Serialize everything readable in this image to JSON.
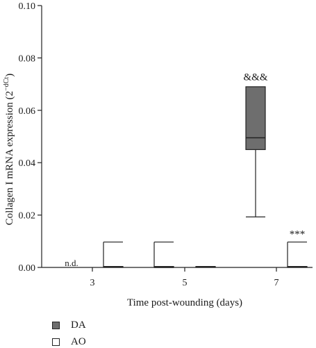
{
  "chart_data": {
    "type": "box",
    "ylabel": "Collagen I mRNA  expression (2",
    "ylabel_sup": "−dCt",
    "ylabel_close": ")",
    "xlabel": "Time post-wounding (days)",
    "ylim": [
      0,
      0.1
    ],
    "yticks": [
      0,
      0.02,
      0.04,
      0.06,
      0.08,
      0.1
    ],
    "ytick_labels": [
      "0.00",
      "0.02",
      "0.04",
      "0.06",
      "0.08",
      "0.10"
    ],
    "categories": [
      "3",
      "5",
      "7"
    ],
    "series": [
      {
        "name": "DA",
        "color": "#6e6e6e",
        "boxes": [
          {
            "category": "3",
            "min": 0,
            "q1": 0,
            "median": 0,
            "q3": 0,
            "max": 0,
            "not_detected": true
          },
          {
            "category": "5",
            "min": 0,
            "q1": 0,
            "median": 0,
            "q3": 0,
            "max": 0.0097
          },
          {
            "category": "7",
            "min": 0.0193,
            "q1": 0.045,
            "median": 0.0495,
            "q3": 0.069,
            "max": 0.069
          }
        ]
      },
      {
        "name": "AO",
        "color": "#ffffff",
        "boxes": [
          {
            "category": "3",
            "min": 0,
            "q1": 0,
            "median": 0.0003,
            "q3": 0.0003,
            "max": 0.0097
          },
          {
            "category": "5",
            "min": 0,
            "q1": 0,
            "median": 0.0002,
            "q3": 0.0002,
            "max": 0.0002
          },
          {
            "category": "7",
            "min": 0,
            "q1": 0,
            "median": 0.0003,
            "q3": 0.0003,
            "max": 0.0097
          }
        ]
      }
    ],
    "annotations": [
      {
        "text": "n.d.",
        "category": "3",
        "series": "DA",
        "y": 0.0005
      },
      {
        "text": "&&&",
        "category": "7",
        "series": "DA",
        "y": 0.0715
      },
      {
        "text": "***",
        "category": "7",
        "series": "AO",
        "y": 0.0115
      }
    ],
    "legend": [
      {
        "label": "DA",
        "color": "#6e6e6e"
      },
      {
        "label": "AO",
        "color": "#ffffff"
      }
    ],
    "legend_position": "bottom-left"
  }
}
